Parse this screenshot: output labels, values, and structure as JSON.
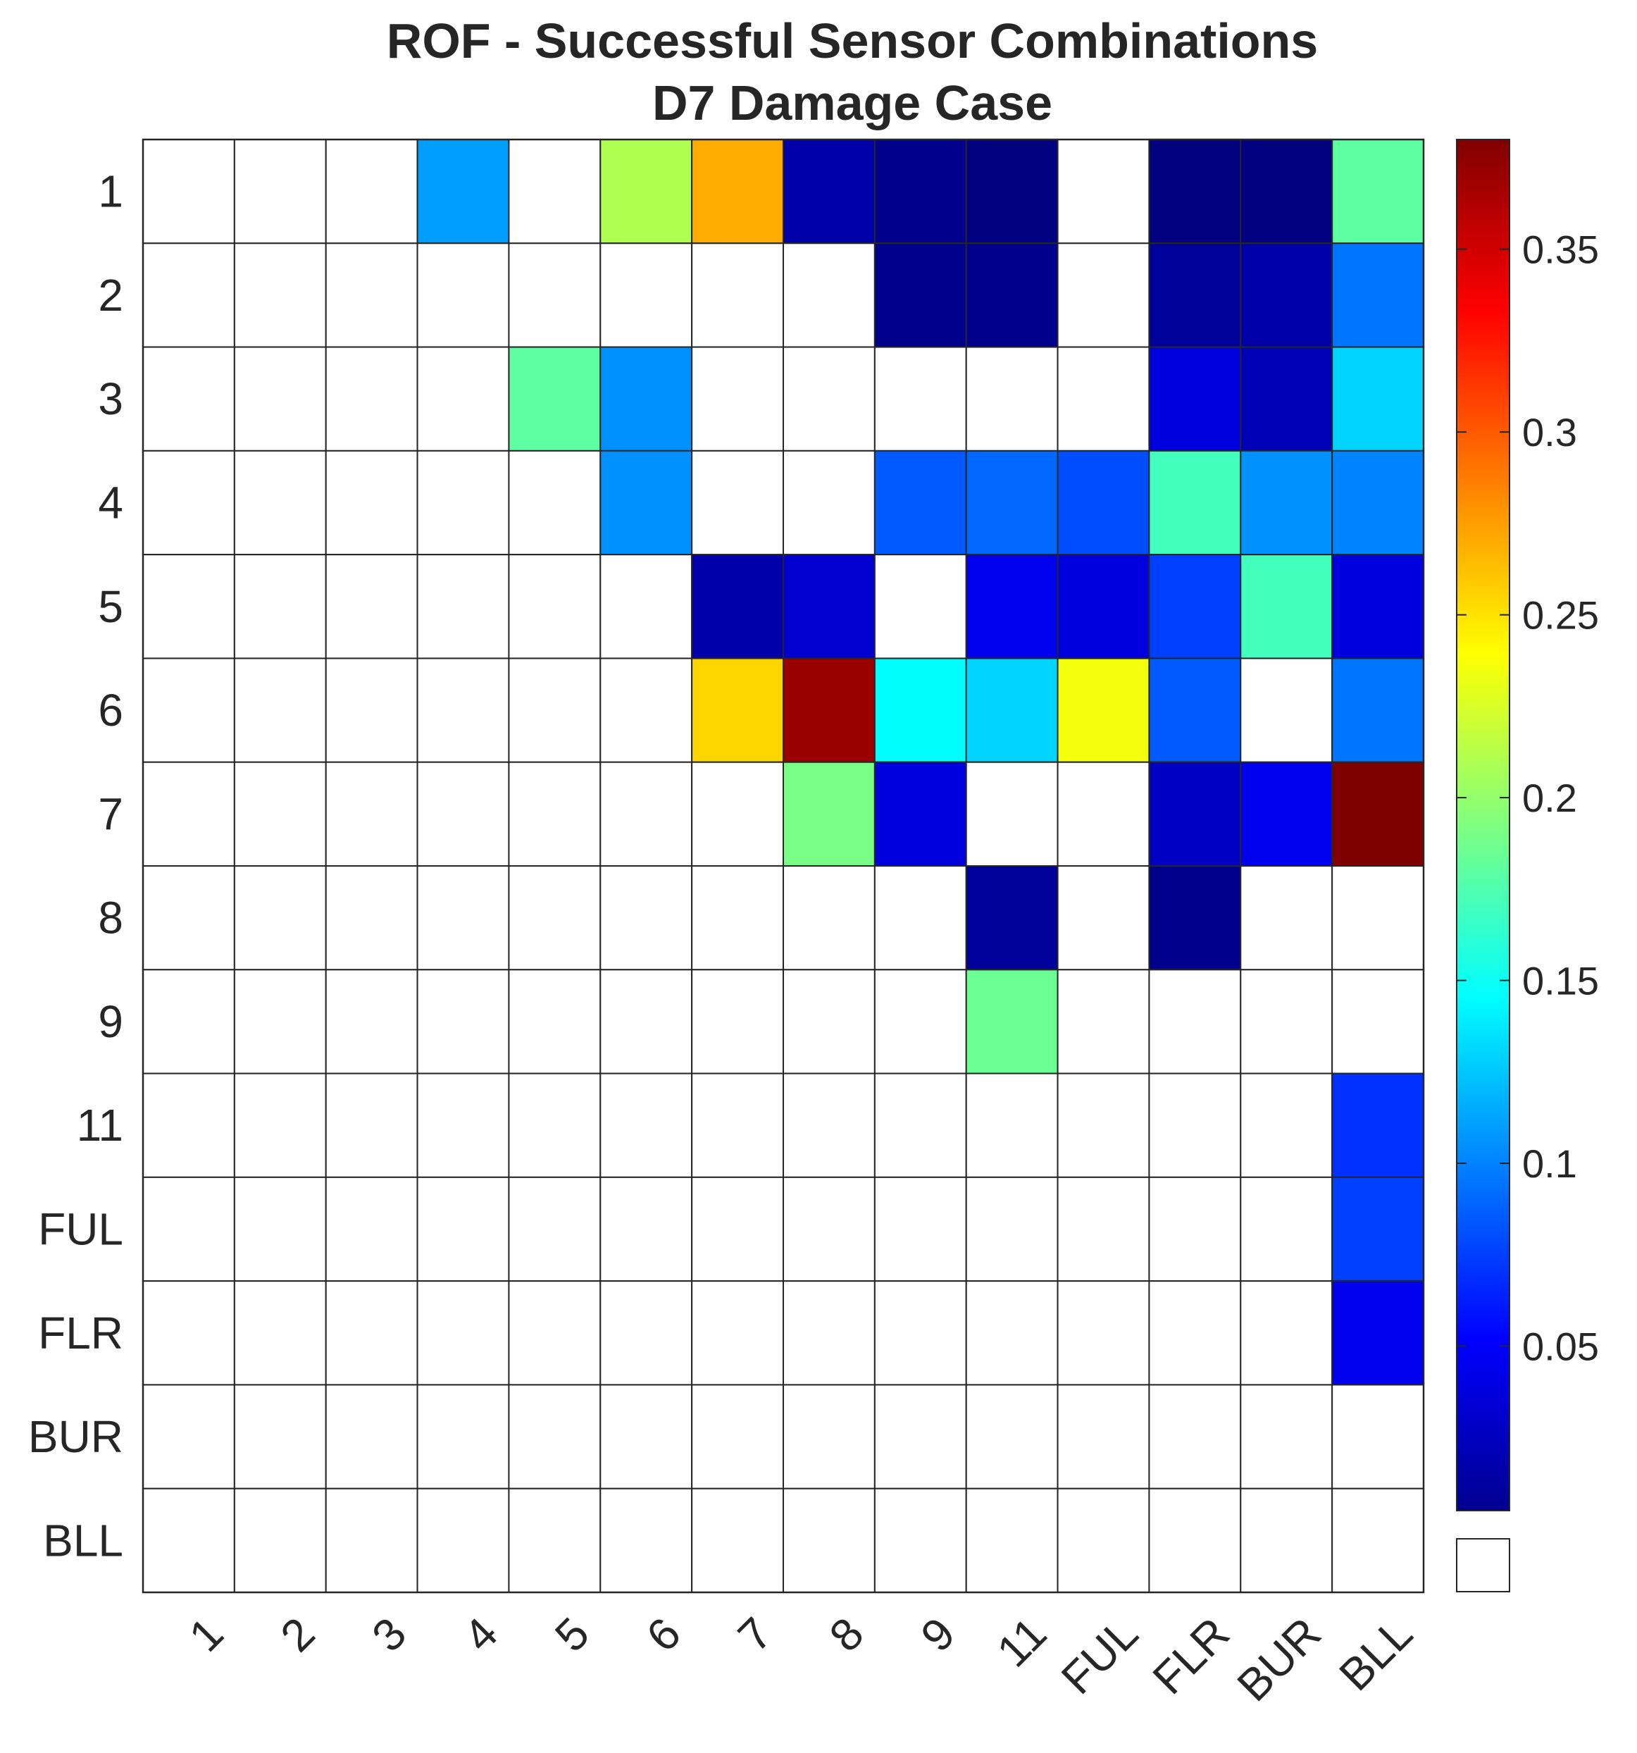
{
  "chart_data": {
    "type": "heatmap",
    "title": "ROF - Successful Sensor Combinations",
    "subtitle": "D7 Damage Case",
    "xlabel": "",
    "ylabel": "",
    "x_categories": [
      "1",
      "2",
      "3",
      "4",
      "5",
      "6",
      "7",
      "8",
      "9",
      "11",
      "FUL",
      "FLR",
      "BUR",
      "BLL"
    ],
    "y_categories": [
      "1",
      "2",
      "3",
      "4",
      "5",
      "6",
      "7",
      "8",
      "9",
      "11",
      "FUL",
      "FLR",
      "BUR",
      "BLL"
    ],
    "colormap": "jet",
    "color_range": [
      0.005,
      0.38
    ],
    "colorbar_ticks": [
      0.05,
      0.1,
      0.15,
      0.2,
      0.25,
      0.3,
      0.35
    ],
    "colorbar_tick_labels": [
      "0.05",
      "0.1",
      "0.15",
      "0.2",
      "0.25",
      "0.3",
      "0.35"
    ],
    "empty_color": "#ffffff",
    "grid": true,
    "values": [
      [
        null,
        null,
        null,
        0.11,
        null,
        0.21,
        0.27,
        0.02,
        0.01,
        0.005,
        null,
        0.005,
        0.005,
        0.18
      ],
      [
        null,
        null,
        null,
        null,
        null,
        null,
        null,
        null,
        0.01,
        0.01,
        null,
        0.015,
        0.02,
        0.095
      ],
      [
        null,
        null,
        null,
        null,
        0.18,
        0.105,
        null,
        null,
        null,
        null,
        null,
        0.04,
        0.025,
        0.13
      ],
      [
        null,
        null,
        null,
        null,
        null,
        0.105,
        null,
        null,
        0.085,
        0.09,
        0.08,
        0.17,
        0.105,
        0.1
      ],
      [
        null,
        null,
        null,
        null,
        null,
        null,
        0.02,
        0.035,
        null,
        0.045,
        0.04,
        0.075,
        0.17,
        0.04
      ],
      [
        null,
        null,
        null,
        null,
        null,
        null,
        0.255,
        0.37,
        0.145,
        0.13,
        0.235,
        0.085,
        null,
        0.095
      ],
      [
        null,
        null,
        null,
        null,
        null,
        null,
        null,
        0.19,
        0.04,
        null,
        null,
        0.03,
        0.045,
        0.38
      ],
      [
        null,
        null,
        null,
        null,
        null,
        null,
        null,
        null,
        null,
        0.015,
        null,
        0.01,
        null,
        null
      ],
      [
        null,
        null,
        null,
        null,
        null,
        null,
        null,
        null,
        null,
        0.185,
        null,
        null,
        null,
        null
      ],
      [
        null,
        null,
        null,
        null,
        null,
        null,
        null,
        null,
        null,
        null,
        null,
        null,
        null,
        0.07
      ],
      [
        null,
        null,
        null,
        null,
        null,
        null,
        null,
        null,
        null,
        null,
        null,
        null,
        null,
        0.075
      ],
      [
        null,
        null,
        null,
        null,
        null,
        null,
        null,
        null,
        null,
        null,
        null,
        null,
        null,
        0.045
      ],
      [
        null,
        null,
        null,
        null,
        null,
        null,
        null,
        null,
        null,
        null,
        null,
        null,
        null,
        null
      ],
      [
        null,
        null,
        null,
        null,
        null,
        null,
        null,
        null,
        null,
        null,
        null,
        null,
        null,
        null
      ]
    ]
  }
}
